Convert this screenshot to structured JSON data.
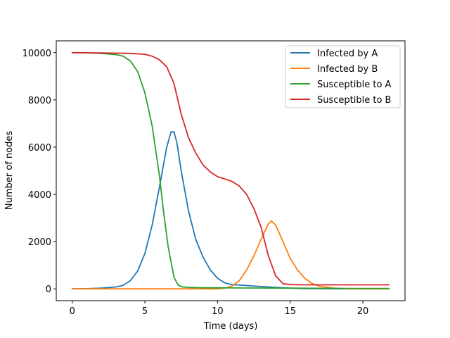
{
  "chart_data": {
    "type": "line",
    "title": "",
    "xlabel": "Time (days)",
    "ylabel": "Number of nodes",
    "xlim": [
      -1.1,
      22.9
    ],
    "ylim": [
      -500,
      10500
    ],
    "xticks": [
      0,
      5,
      10,
      15,
      20
    ],
    "yticks": [
      0,
      2000,
      4000,
      6000,
      8000,
      10000
    ],
    "grid": false,
    "legend_position": "top-right",
    "series": [
      {
        "name": "Infected by A",
        "color": "#1f77b4",
        "x": [
          0,
          1,
          2,
          3,
          3.5,
          4,
          4.5,
          5,
          5.5,
          6,
          6.5,
          6.8,
          7,
          7.2,
          7.5,
          8,
          8.5,
          9,
          9.5,
          10,
          10.5,
          11,
          12,
          13,
          14,
          15,
          16,
          18,
          20,
          21.8
        ],
        "y": [
          0,
          10,
          30,
          80,
          150,
          350,
          750,
          1500,
          2700,
          4300,
          6000,
          6650,
          6650,
          6200,
          5000,
          3300,
          2100,
          1350,
          800,
          450,
          250,
          180,
          140,
          100,
          60,
          30,
          10,
          5,
          0,
          0
        ]
      },
      {
        "name": "Infected by B",
        "color": "#ff7f0e",
        "x": [
          0,
          5,
          10,
          10.5,
          11,
          11.5,
          12,
          12.5,
          13,
          13.5,
          13.7,
          14,
          14.5,
          15,
          15.5,
          16,
          16.5,
          17,
          18,
          19,
          20,
          21.8
        ],
        "y": [
          0,
          0,
          0,
          30,
          120,
          350,
          800,
          1400,
          2100,
          2750,
          2880,
          2700,
          2000,
          1300,
          800,
          450,
          230,
          110,
          30,
          5,
          0,
          0
        ]
      },
      {
        "name": "Susceptible to A",
        "color": "#2ca02c",
        "x": [
          0,
          1,
          2,
          3,
          3.5,
          4,
          4.5,
          5,
          5.5,
          6,
          6.3,
          6.6,
          7,
          7.3,
          7.6,
          8,
          9,
          10,
          11,
          12,
          13,
          14,
          15,
          17,
          19,
          21.8
        ],
        "y": [
          10000,
          9990,
          9970,
          9920,
          9850,
          9650,
          9200,
          8300,
          6900,
          4800,
          3200,
          1800,
          500,
          150,
          80,
          60,
          50,
          45,
          40,
          38,
          36,
          34,
          30,
          25,
          20,
          20
        ]
      },
      {
        "name": "Susceptible to B",
        "color": "#d62728",
        "x": [
          0,
          2,
          4,
          5,
          5.5,
          6,
          6.5,
          7,
          7.5,
          8,
          8.5,
          9,
          9.5,
          10,
          10.5,
          11,
          11.5,
          12,
          12.5,
          13,
          13.5,
          14,
          14.5,
          15,
          16,
          18,
          20,
          21.8
        ],
        "y": [
          10000,
          9990,
          9970,
          9930,
          9850,
          9700,
          9400,
          8700,
          7400,
          6400,
          5750,
          5250,
          4950,
          4750,
          4650,
          4550,
          4350,
          4000,
          3400,
          2600,
          1400,
          550,
          220,
          180,
          170,
          170,
          170,
          170
        ]
      }
    ]
  }
}
